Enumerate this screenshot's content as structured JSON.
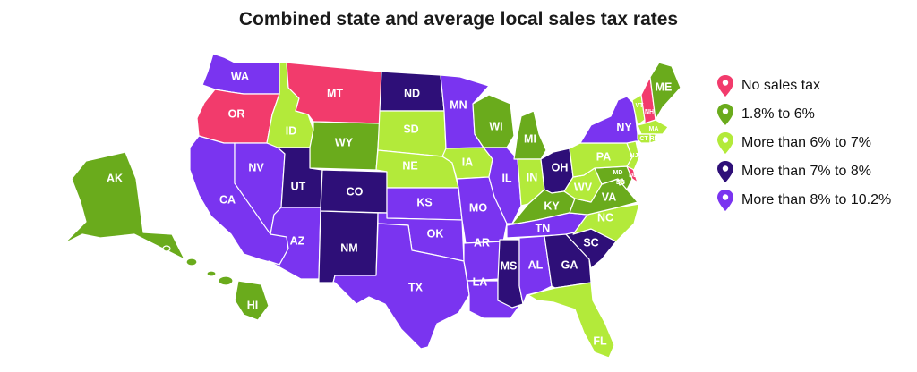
{
  "title": "Combined state and average local sales tax rates",
  "colors": {
    "no_tax": "#f23b6c",
    "c1": "#6aab1c",
    "c2": "#b3ea3a",
    "c3": "#2e0f78",
    "c4": "#7a34f0"
  },
  "legend": [
    {
      "label": "No sales tax",
      "color": "#f23b6c"
    },
    {
      "label": "1.8% to 6%",
      "color": "#6aab1c"
    },
    {
      "label": "More than 6% to 7%",
      "color": "#b3ea3a"
    },
    {
      "label": "More than 7% to 8%",
      "color": "#2e0f78"
    },
    {
      "label": "More than 8% to 10.2%",
      "color": "#7a34f0"
    }
  ],
  "states": {
    "WA": {
      "label": "WA",
      "category": "c4"
    },
    "OR": {
      "label": "OR",
      "category": "no_tax"
    },
    "CA": {
      "label": "CA",
      "category": "c4"
    },
    "NV": {
      "label": "NV",
      "category": "c4"
    },
    "ID": {
      "label": "ID",
      "category": "c2"
    },
    "MT": {
      "label": "MT",
      "category": "no_tax"
    },
    "WY": {
      "label": "WY",
      "category": "c1"
    },
    "UT": {
      "label": "UT",
      "category": "c3"
    },
    "CO": {
      "label": "CO",
      "category": "c3"
    },
    "AZ": {
      "label": "AZ",
      "category": "c4"
    },
    "NM": {
      "label": "NM",
      "category": "c3"
    },
    "ND": {
      "label": "ND",
      "category": "c3"
    },
    "SD": {
      "label": "SD",
      "category": "c2"
    },
    "NE": {
      "label": "NE",
      "category": "c2"
    },
    "KS": {
      "label": "KS",
      "category": "c4"
    },
    "OK": {
      "label": "OK",
      "category": "c4"
    },
    "TX": {
      "label": "TX",
      "category": "c4"
    },
    "MN": {
      "label": "MN",
      "category": "c4"
    },
    "IA": {
      "label": "IA",
      "category": "c2"
    },
    "MO": {
      "label": "MO",
      "category": "c4"
    },
    "AR": {
      "label": "AR",
      "category": "c4"
    },
    "LA": {
      "label": "LA",
      "category": "c4"
    },
    "WI": {
      "label": "WI",
      "category": "c1"
    },
    "IL": {
      "label": "IL",
      "category": "c4"
    },
    "MI": {
      "label": "MI",
      "category": "c1"
    },
    "IN": {
      "label": "IN",
      "category": "c2"
    },
    "OH": {
      "label": "OH",
      "category": "c3"
    },
    "KY": {
      "label": "KY",
      "category": "c1"
    },
    "TN": {
      "label": "TN",
      "category": "c4"
    },
    "MS": {
      "label": "MS",
      "category": "c3"
    },
    "AL": {
      "label": "AL",
      "category": "c4"
    },
    "GA": {
      "label": "GA",
      "category": "c3"
    },
    "FL": {
      "label": "FL",
      "category": "c2"
    },
    "SC": {
      "label": "SC",
      "category": "c3"
    },
    "NC": {
      "label": "NC",
      "category": "c2"
    },
    "VA": {
      "label": "VA",
      "category": "c1"
    },
    "WV": {
      "label": "WV",
      "category": "c2"
    },
    "PA": {
      "label": "PA",
      "category": "c2"
    },
    "NY": {
      "label": "NY",
      "category": "c4"
    },
    "VT": {
      "label": "VT",
      "category": "c2"
    },
    "NH": {
      "label": "NH",
      "category": "no_tax"
    },
    "ME": {
      "label": "ME",
      "category": "c1"
    },
    "MA": {
      "label": "MA",
      "category": "c2"
    },
    "RI": {
      "label": "RI",
      "category": "c2"
    },
    "CT": {
      "label": "CT",
      "category": "c2"
    },
    "NJ": {
      "label": "NJ",
      "category": "c2"
    },
    "DE": {
      "label": "DE",
      "category": "no_tax"
    },
    "MD": {
      "label": "MD",
      "category": "c1"
    },
    "DC": {
      "label": "DC",
      "category": "c2"
    },
    "AK": {
      "label": "AK",
      "category": "c1"
    },
    "HI": {
      "label": "HI",
      "category": "c1"
    }
  }
}
